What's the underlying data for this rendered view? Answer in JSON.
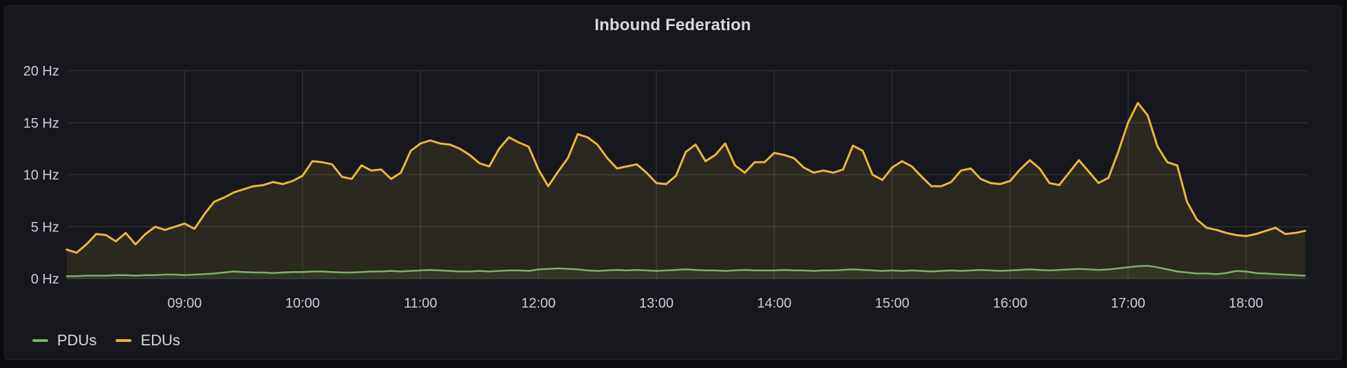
{
  "panel": {
    "title": "Inbound Federation"
  },
  "colors": {
    "background_outer": "#0b0c0e",
    "background_panel": "#16181d",
    "panel_border": "#26282e",
    "grid_line": "rgba(204,204,220,0.14)",
    "axis_text": "#ccccdc",
    "title_text": "#d8d9da",
    "pdus_green": "#7EB26D",
    "edus_yellow": "#EAB839"
  },
  "chart_data": {
    "type": "line",
    "title": "Inbound Federation",
    "xlabel": "",
    "ylabel": "",
    "y_unit": "Hz",
    "ylim": [
      0,
      20
    ],
    "grid": true,
    "legend_position": "bottom-left",
    "x_axis_start_hour": 8.0,
    "x_axis_end_hour": 18.53,
    "data_start_hour": 8.0,
    "step_minutes": 5,
    "data_start_label": "08:00",
    "data_end_label": "18:30",
    "y_ticks": [
      {
        "label": "0 Hz",
        "value": 0
      },
      {
        "label": "5 Hz",
        "value": 5
      },
      {
        "label": "10 Hz",
        "value": 10
      },
      {
        "label": "15 Hz",
        "value": 15
      },
      {
        "label": "20 Hz",
        "value": 20
      }
    ],
    "x_ticks": [
      {
        "label": "09:00",
        "hour": 9
      },
      {
        "label": "10:00",
        "hour": 10
      },
      {
        "label": "11:00",
        "hour": 11
      },
      {
        "label": "12:00",
        "hour": 12
      },
      {
        "label": "13:00",
        "hour": 13
      },
      {
        "label": "14:00",
        "hour": 14
      },
      {
        "label": "15:00",
        "hour": 15
      },
      {
        "label": "16:00",
        "hour": 16
      },
      {
        "label": "17:00",
        "hour": 17
      },
      {
        "label": "18:00",
        "hour": 18
      }
    ],
    "series": [
      {
        "name": "PDUs",
        "color": "#7EB26D",
        "fill_opacity": 0.1,
        "line_width": 2.5,
        "values": [
          0.25,
          0.25,
          0.3,
          0.3,
          0.3,
          0.35,
          0.35,
          0.3,
          0.35,
          0.35,
          0.4,
          0.4,
          0.35,
          0.4,
          0.45,
          0.5,
          0.6,
          0.7,
          0.65,
          0.6,
          0.6,
          0.55,
          0.6,
          0.65,
          0.65,
          0.7,
          0.7,
          0.65,
          0.6,
          0.6,
          0.65,
          0.7,
          0.7,
          0.75,
          0.7,
          0.75,
          0.8,
          0.85,
          0.8,
          0.75,
          0.7,
          0.7,
          0.75,
          0.7,
          0.75,
          0.8,
          0.8,
          0.75,
          0.9,
          0.95,
          1.0,
          0.95,
          0.9,
          0.8,
          0.75,
          0.8,
          0.85,
          0.8,
          0.85,
          0.8,
          0.75,
          0.8,
          0.85,
          0.9,
          0.85,
          0.8,
          0.8,
          0.75,
          0.8,
          0.85,
          0.8,
          0.8,
          0.8,
          0.85,
          0.8,
          0.8,
          0.75,
          0.8,
          0.8,
          0.85,
          0.9,
          0.85,
          0.8,
          0.75,
          0.8,
          0.75,
          0.8,
          0.75,
          0.7,
          0.75,
          0.8,
          0.75,
          0.8,
          0.85,
          0.8,
          0.75,
          0.8,
          0.85,
          0.9,
          0.85,
          0.8,
          0.85,
          0.9,
          0.95,
          0.9,
          0.85,
          0.9,
          1.0,
          1.1,
          1.2,
          1.25,
          1.1,
          0.9,
          0.7,
          0.6,
          0.5,
          0.5,
          0.45,
          0.55,
          0.75,
          0.7,
          0.55,
          0.5,
          0.45,
          0.4,
          0.35,
          0.3
        ]
      },
      {
        "name": "EDUs",
        "color": "#EAB839",
        "fill_opacity": 0.1,
        "line_width": 3,
        "values": [
          2.8,
          2.5,
          3.3,
          4.3,
          4.2,
          3.6,
          4.4,
          3.3,
          4.3,
          5.0,
          4.7,
          5.0,
          5.3,
          4.8,
          6.2,
          7.4,
          7.8,
          8.3,
          8.6,
          8.9,
          9.0,
          9.3,
          9.1,
          9.4,
          9.9,
          11.3,
          11.2,
          11.0,
          9.8,
          9.6,
          10.9,
          10.4,
          10.5,
          9.6,
          10.2,
          12.3,
          13.0,
          13.3,
          13.0,
          12.9,
          12.5,
          11.9,
          11.1,
          10.8,
          12.5,
          13.6,
          13.1,
          12.7,
          10.5,
          8.9,
          10.3,
          11.6,
          13.9,
          13.6,
          12.9,
          11.6,
          10.6,
          10.8,
          11.0,
          10.2,
          9.2,
          9.1,
          9.9,
          12.2,
          12.9,
          11.3,
          11.9,
          13.0,
          10.9,
          10.2,
          11.2,
          11.2,
          12.1,
          11.9,
          11.6,
          10.7,
          10.2,
          10.4,
          10.2,
          10.5,
          12.8,
          12.3,
          10.0,
          9.5,
          10.7,
          11.3,
          10.8,
          9.8,
          8.9,
          8.9,
          9.3,
          10.4,
          10.6,
          9.6,
          9.2,
          9.1,
          9.4,
          10.5,
          11.4,
          10.6,
          9.2,
          9.0,
          10.2,
          11.4,
          10.3,
          9.2,
          9.7,
          12.2,
          15.0,
          16.9,
          15.7,
          12.7,
          11.2,
          10.9,
          7.4,
          5.7,
          4.9,
          4.7,
          4.4,
          4.2,
          4.1,
          4.3,
          4.6,
          4.9,
          4.3,
          4.4,
          4.6
        ]
      }
    ]
  }
}
